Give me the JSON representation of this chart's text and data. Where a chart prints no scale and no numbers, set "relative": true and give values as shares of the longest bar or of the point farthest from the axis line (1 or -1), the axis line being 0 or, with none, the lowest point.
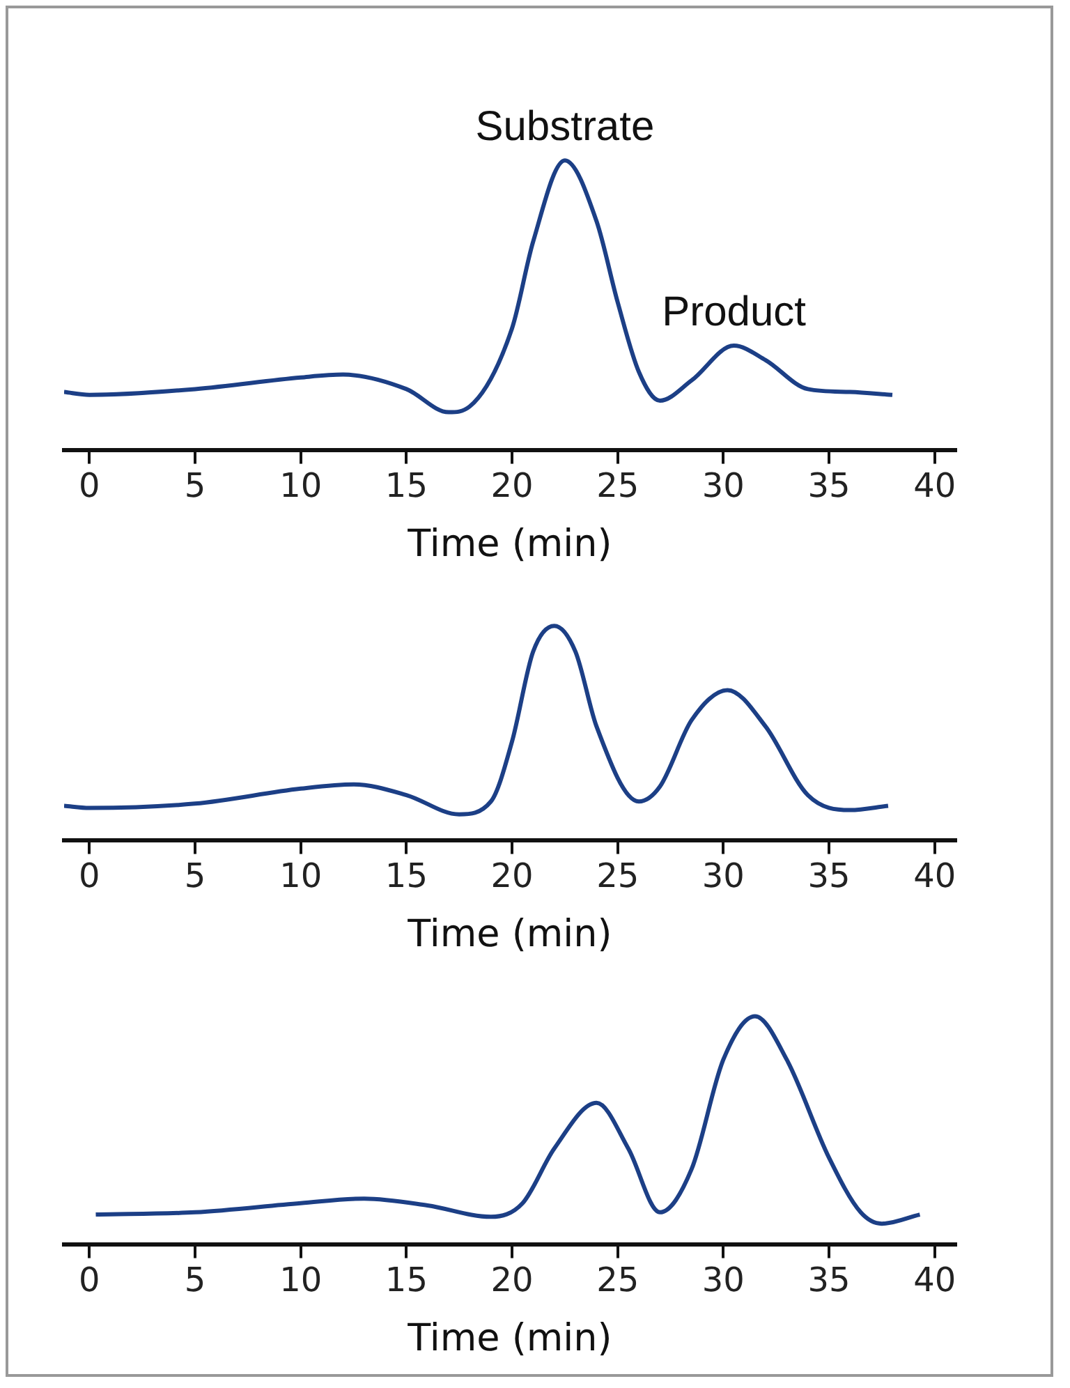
{
  "chart_data": [
    {
      "type": "line",
      "relative": true,
      "xlabel": "Time (min)",
      "xlim": [
        -1.2,
        41
      ],
      "xticks": [
        0,
        5,
        10,
        15,
        20,
        25,
        30,
        35,
        40
      ],
      "grid": false,
      "legend": false,
      "marker": "none",
      "line_style": "solid",
      "annotations": [
        {
          "text": "Substrate",
          "x": 22.5,
          "y": 1
        },
        {
          "text": "Product",
          "x": 30.5,
          "y": 0.36
        }
      ],
      "series": [
        {
          "color": "#1c3f86",
          "x": [
            -1.2,
            0,
            5,
            10,
            12,
            15,
            17,
            18,
            20,
            21,
            22.5,
            24,
            25,
            26,
            27,
            28.5,
            30.5,
            32,
            34,
            36,
            38
          ],
          "values": [
            0.2,
            0.19,
            0.21,
            0.25,
            0.26,
            0.21,
            0.13,
            0.15,
            0.42,
            0.72,
            1,
            0.79,
            0.51,
            0.27,
            0.17,
            0.24,
            0.36,
            0.31,
            0.21,
            0.2,
            0.19
          ]
        }
      ]
    },
    {
      "type": "line",
      "relative": true,
      "xlabel": "Time (min)",
      "xlim": [
        -1.2,
        41
      ],
      "xticks": [
        0,
        5,
        10,
        15,
        20,
        25,
        30,
        35,
        40
      ],
      "grid": false,
      "legend": false,
      "marker": "none",
      "line_style": "solid",
      "series": [
        {
          "color": "#1c3f86",
          "x": [
            -1.2,
            0,
            5,
            10,
            12.5,
            15,
            17.5,
            19,
            20,
            21,
            22,
            23,
            24,
            26,
            27,
            28.5,
            30.2,
            32,
            34,
            36,
            37.8
          ],
          "values": [
            0.16,
            0.15,
            0.17,
            0.24,
            0.26,
            0.21,
            0.12,
            0.18,
            0.46,
            0.88,
            1,
            0.88,
            0.53,
            0.18,
            0.25,
            0.56,
            0.7,
            0.53,
            0.21,
            0.14,
            0.16
          ]
        }
      ]
    },
    {
      "type": "line",
      "relative": true,
      "xlabel": "Time (min)",
      "xlim": [
        -1.2,
        41
      ],
      "xticks": [
        0,
        5,
        10,
        15,
        20,
        25,
        30,
        35,
        40
      ],
      "grid": false,
      "legend": false,
      "marker": "none",
      "line_style": "solid",
      "series": [
        {
          "color": "#1c3f86",
          "x": [
            0.3,
            5,
            10,
            13,
            16,
            19,
            20.5,
            22,
            24,
            25.5,
            27,
            28.5,
            30,
            31.5,
            33,
            35,
            36.5,
            37.5,
            39.3
          ],
          "values": [
            0.13,
            0.14,
            0.18,
            0.2,
            0.17,
            0.12,
            0.18,
            0.42,
            0.62,
            0.42,
            0.14,
            0.33,
            0.81,
            1,
            0.81,
            0.38,
            0.14,
            0.09,
            0.13
          ]
        }
      ]
    }
  ]
}
